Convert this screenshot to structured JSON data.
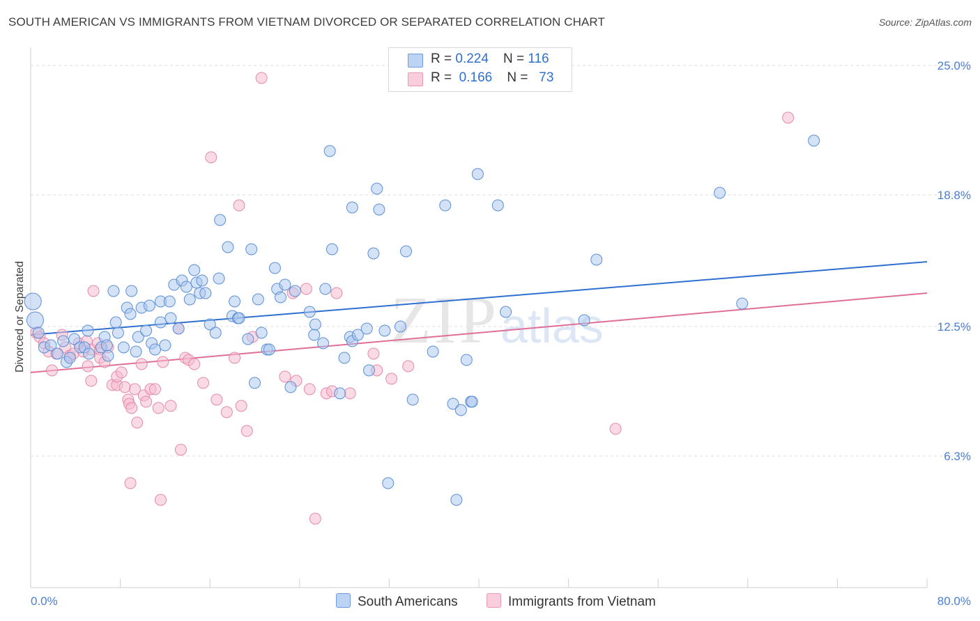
{
  "title": "SOUTH AMERICAN VS IMMIGRANTS FROM VIETNAM DIVORCED OR SEPARATED CORRELATION CHART",
  "source": "Source: ZipAtlas.com",
  "watermark": {
    "zip": "ZIP",
    "atlas": "atlas"
  },
  "legend": {
    "rows": [
      {
        "r_label": "R = ",
        "r_value": "0.224",
        "n_label": "N = ",
        "n_value": "116"
      },
      {
        "r_label": "R = ",
        "r_value": "0.166",
        "n_label": "N = ",
        "n_value": "73"
      }
    ]
  },
  "colors": {
    "blue_fill": "#a9c6f0",
    "blue_stroke": "#5b8fd6",
    "blue_line": "#2e6fd0",
    "pink_fill": "#f6bcd0",
    "pink_stroke": "#e58aa9",
    "pink_line": "#e06e96",
    "tick_label": "#4a7fd4"
  },
  "chart_data": {
    "type": "scatter",
    "title": "SOUTH AMERICAN VS IMMIGRANTS FROM VIETNAM DIVORCED OR SEPARATED CORRELATION CHART",
    "xlabel": "",
    "ylabel": "Divorced or Separated",
    "xlim": [
      0,
      80
    ],
    "ylim": [
      0,
      25.8
    ],
    "x_tick_labels": [
      "0.0%",
      "80.0%"
    ],
    "y_ticks": [
      6.3,
      12.5,
      18.8,
      25.0
    ],
    "y_tick_labels": [
      "6.3%",
      "12.5%",
      "18.8%",
      "25.0%"
    ],
    "grid": true,
    "legend_position": "top-center",
    "series": [
      {
        "name": "South Americans",
        "color": "#a9c6f0",
        "trend": {
          "x": [
            0,
            80
          ],
          "y": [
            12.1,
            15.6
          ]
        },
        "points": [
          [
            0.2,
            13.7
          ],
          [
            0.4,
            12.8
          ],
          [
            0.7,
            12.2
          ],
          [
            1.2,
            11.5
          ],
          [
            1.8,
            11.6
          ],
          [
            2.4,
            11.2
          ],
          [
            2.9,
            11.8
          ],
          [
            3.2,
            10.8
          ],
          [
            3.5,
            11.0
          ],
          [
            3.9,
            11.9
          ],
          [
            4.4,
            11.5
          ],
          [
            4.8,
            11.5
          ],
          [
            5.2,
            11.2
          ],
          [
            5.1,
            12.3
          ],
          [
            6.6,
            12.0
          ],
          [
            6.9,
            11.1
          ],
          [
            6.3,
            11.5
          ],
          [
            6.8,
            11.6
          ],
          [
            7.4,
            14.2
          ],
          [
            7.6,
            12.7
          ],
          [
            7.8,
            12.2
          ],
          [
            8.3,
            11.5
          ],
          [
            8.6,
            13.4
          ],
          [
            8.9,
            13.1
          ],
          [
            9.0,
            14.2
          ],
          [
            9.4,
            11.3
          ],
          [
            9.6,
            12.0
          ],
          [
            9.9,
            13.4
          ],
          [
            10.3,
            12.3
          ],
          [
            10.6,
            13.5
          ],
          [
            10.8,
            11.7
          ],
          [
            11.1,
            11.4
          ],
          [
            11.6,
            12.7
          ],
          [
            11.6,
            13.7
          ],
          [
            12.0,
            11.6
          ],
          [
            12.4,
            13.7
          ],
          [
            12.5,
            12.9
          ],
          [
            12.8,
            14.5
          ],
          [
            13.2,
            12.4
          ],
          [
            13.5,
            14.7
          ],
          [
            13.9,
            14.4
          ],
          [
            14.2,
            13.8
          ],
          [
            14.6,
            15.2
          ],
          [
            14.8,
            14.6
          ],
          [
            15.1,
            14.1
          ],
          [
            15.3,
            14.7
          ],
          [
            15.6,
            14.1
          ],
          [
            16.0,
            12.6
          ],
          [
            16.5,
            12.2
          ],
          [
            16.8,
            14.8
          ],
          [
            17.6,
            16.3
          ],
          [
            16.9,
            17.6
          ],
          [
            18.0,
            13.0
          ],
          [
            18.2,
            13.7
          ],
          [
            18.5,
            12.9
          ],
          [
            18.6,
            12.9
          ],
          [
            19.4,
            11.9
          ],
          [
            19.7,
            16.2
          ],
          [
            20.0,
            9.8
          ],
          [
            20.3,
            13.8
          ],
          [
            20.6,
            12.2
          ],
          [
            21.1,
            11.4
          ],
          [
            21.3,
            11.4
          ],
          [
            21.8,
            15.3
          ],
          [
            22.0,
            14.3
          ],
          [
            22.3,
            13.9
          ],
          [
            22.7,
            14.5
          ],
          [
            23.2,
            9.6
          ],
          [
            23.6,
            14.2
          ],
          [
            24.9,
            13.2
          ],
          [
            25.3,
            12.1
          ],
          [
            25.4,
            12.6
          ],
          [
            26.1,
            11.7
          ],
          [
            26.3,
            14.3
          ],
          [
            26.7,
            20.9
          ],
          [
            26.9,
            16.2
          ],
          [
            27.6,
            9.3
          ],
          [
            28.0,
            11.0
          ],
          [
            28.5,
            12.0
          ],
          [
            28.7,
            11.8
          ],
          [
            28.7,
            18.2
          ],
          [
            29.2,
            12.1
          ],
          [
            30.0,
            12.4
          ],
          [
            30.2,
            10.4
          ],
          [
            30.6,
            16.0
          ],
          [
            30.9,
            19.1
          ],
          [
            31.1,
            18.1
          ],
          [
            31.6,
            12.3
          ],
          [
            31.9,
            5.0
          ],
          [
            33.0,
            12.5
          ],
          [
            33.5,
            16.1
          ],
          [
            34.1,
            9.0
          ],
          [
            35.9,
            11.3
          ],
          [
            37.0,
            18.3
          ],
          [
            37.7,
            8.8
          ],
          [
            38.0,
            4.2
          ],
          [
            38.4,
            8.5
          ],
          [
            38.9,
            10.9
          ],
          [
            39.3,
            8.9
          ],
          [
            39.4,
            8.9
          ],
          [
            39.9,
            19.8
          ],
          [
            41.7,
            18.3
          ],
          [
            42.4,
            13.2
          ],
          [
            49.4,
            12.8
          ],
          [
            50.5,
            15.7
          ],
          [
            61.5,
            18.9
          ],
          [
            63.5,
            13.6
          ],
          [
            69.9,
            21.4
          ]
        ]
      },
      {
        "name": "Immigrants from Vietnam",
        "color": "#f6bcd0",
        "trend": {
          "x": [
            0,
            80
          ],
          "y": [
            10.3,
            14.1
          ]
        },
        "points": [
          [
            0.5,
            12.2
          ],
          [
            0.8,
            12.0
          ],
          [
            1.2,
            11.7
          ],
          [
            1.6,
            11.3
          ],
          [
            1.9,
            10.4
          ],
          [
            2.3,
            11.2
          ],
          [
            2.8,
            12.1
          ],
          [
            3.1,
            11.5
          ],
          [
            3.5,
            11.1
          ],
          [
            3.8,
            11.2
          ],
          [
            4.3,
            11.7
          ],
          [
            4.7,
            11.3
          ],
          [
            5.0,
            11.8
          ],
          [
            5.1,
            10.6
          ],
          [
            5.4,
            11.4
          ],
          [
            5.4,
            9.9
          ],
          [
            5.6,
            14.2
          ],
          [
            6.0,
            11.7
          ],
          [
            6.2,
            11.4
          ],
          [
            6.2,
            11.0
          ],
          [
            6.6,
            10.8
          ],
          [
            6.9,
            11.5
          ],
          [
            7.3,
            9.7
          ],
          [
            7.7,
            9.7
          ],
          [
            7.7,
            10.1
          ],
          [
            8.1,
            10.3
          ],
          [
            8.4,
            9.6
          ],
          [
            8.7,
            9.0
          ],
          [
            8.8,
            8.8
          ],
          [
            9.0,
            8.6
          ],
          [
            8.9,
            5.0
          ],
          [
            9.3,
            9.5
          ],
          [
            9.5,
            7.9
          ],
          [
            9.9,
            10.7
          ],
          [
            10.1,
            9.2
          ],
          [
            10.3,
            8.9
          ],
          [
            10.7,
            9.5
          ],
          [
            11.1,
            9.5
          ],
          [
            11.4,
            8.6
          ],
          [
            11.6,
            4.2
          ],
          [
            11.8,
            10.8
          ],
          [
            12.5,
            8.7
          ],
          [
            13.2,
            12.4
          ],
          [
            13.4,
            6.6
          ],
          [
            13.8,
            11.0
          ],
          [
            14.1,
            10.9
          ],
          [
            14.6,
            10.7
          ],
          [
            15.4,
            9.8
          ],
          [
            16.1,
            20.6
          ],
          [
            16.6,
            9.0
          ],
          [
            17.5,
            8.4
          ],
          [
            18.2,
            11.0
          ],
          [
            18.6,
            18.3
          ],
          [
            18.8,
            8.7
          ],
          [
            19.3,
            7.5
          ],
          [
            19.8,
            12.0
          ],
          [
            20.6,
            24.4
          ],
          [
            22.7,
            10.1
          ],
          [
            23.4,
            14.1
          ],
          [
            23.7,
            9.9
          ],
          [
            24.6,
            14.3
          ],
          [
            24.9,
            9.5
          ],
          [
            25.4,
            3.3
          ],
          [
            26.4,
            9.3
          ],
          [
            26.9,
            9.4
          ],
          [
            27.3,
            14.1
          ],
          [
            28.5,
            9.3
          ],
          [
            30.6,
            11.2
          ],
          [
            30.9,
            10.4
          ],
          [
            32.2,
            10.0
          ],
          [
            33.7,
            10.6
          ],
          [
            52.2,
            7.6
          ],
          [
            67.6,
            22.5
          ]
        ]
      }
    ]
  },
  "bottom_legend": {
    "items": [
      "South Americans",
      "Immigrants from Vietnam"
    ]
  }
}
